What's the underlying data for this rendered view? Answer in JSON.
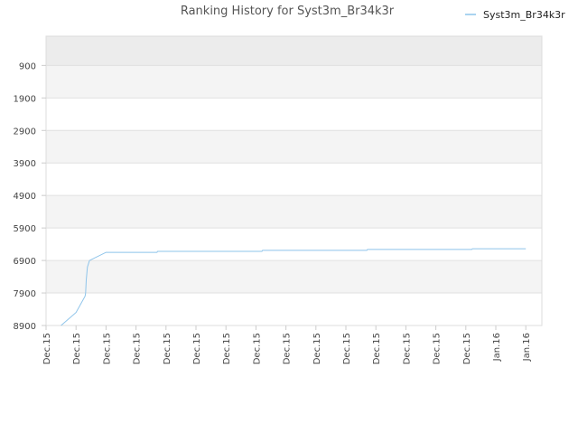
{
  "chart_data": {
    "type": "line",
    "title": "Ranking History for Syst3m_Br34k3r",
    "xlabel": "",
    "ylabel": "",
    "y_inverted": true,
    "ylim": [
      8900,
      0
    ],
    "yticks": [
      900,
      1900,
      2900,
      3900,
      4900,
      5900,
      6900,
      7900,
      8900
    ],
    "x_ticks": [
      "Dec.15",
      "Dec.15",
      "Dec.15",
      "Dec.15",
      "Dec.15",
      "Dec.15",
      "Dec.15",
      "Dec.15",
      "Dec.15",
      "Dec.15",
      "Dec.15",
      "Dec.15",
      "Dec.15",
      "Dec.15",
      "Dec.15",
      "Jan.16",
      "Jan.16"
    ],
    "grid": true,
    "legend_position": "top-right",
    "colors": {
      "series": "#8ec4ea",
      "band_a": "#ececec",
      "band_b": "#f4f4f4",
      "band_c": "#ffffff",
      "grid": "#e0e0e0"
    },
    "series": [
      {
        "name": "Syst3m_Br34k3r",
        "x": [
          0.5,
          1.0,
          1.3,
          1.32,
          1.34,
          1.38,
          1.45,
          2.0,
          3.7,
          3.72,
          7.2,
          7.22,
          10.7,
          10.72,
          14.2,
          14.22,
          16.0
        ],
        "y": [
          8900,
          8500,
          8000,
          7900,
          7500,
          7100,
          6900,
          6650,
          6650,
          6620,
          6620,
          6590,
          6590,
          6560,
          6560,
          6540,
          6540
        ]
      }
    ]
  }
}
